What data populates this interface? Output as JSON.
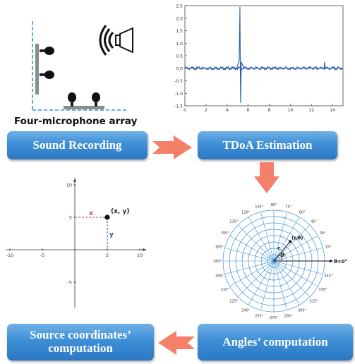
{
  "labels": {
    "array_caption": "Four-microphone array",
    "sound_recording": "Sound Recording",
    "tdoa_estimation": "TDoA Estimation",
    "angles_computation": "Angles’ computation",
    "source_coordinates": "Source coordinates’ computation",
    "plot_point": "(x, y)",
    "plot_x": "x",
    "plot_y": "y",
    "polar_point": "(r,θ)",
    "polar_r": "r",
    "polar_theta": "θ",
    "polar_zero": "θ=0°"
  },
  "colors": {
    "box_blue": "#3f8fd6",
    "arrow_orange": "#f4806a",
    "waveform": "#2a5caa"
  },
  "chart_data": [
    {
      "type": "line",
      "title": "",
      "xlabel": "",
      "ylabel": "",
      "xlim": [
        0,
        15
      ],
      "ylim": [
        -1.5,
        2.5
      ],
      "xticks": [
        0,
        2,
        4,
        6,
        8,
        10,
        12,
        14
      ],
      "yticks": [
        2.5,
        2.0,
        1.5,
        1.0,
        0.5,
        0.0,
        -0.5,
        -1.0,
        -1.5
      ],
      "ytick_labels": [
        "2.5",
        "2.0",
        "1.5",
        "1.0",
        "0.5",
        "0.0",
        "-0.5",
        "-1.0",
        "-1.5"
      ],
      "series": [
        {
          "x": [
            0,
            4.9,
            5.15,
            5.22,
            5.28,
            5.35,
            5.6,
            13.2,
            13.25,
            13.3,
            15
          ],
          "y": [
            0.0,
            0.0,
            0.3,
            2.45,
            -1.38,
            0.25,
            0.0,
            0.0,
            0.25,
            0.0,
            0.0
          ]
        }
      ],
      "grid": false
    },
    {
      "type": "scatter",
      "xlim": [
        -10,
        10
      ],
      "ylim": [
        -10,
        10
      ],
      "xticks": [
        -10,
        -5,
        5,
        10
      ],
      "yticks": [
        10,
        5,
        -5,
        -10
      ],
      "series": [
        {
          "x": [
            5
          ],
          "y": [
            5
          ]
        }
      ],
      "grid": false
    },
    {
      "type": "polar",
      "angle_labels": [
        "0°",
        "15°",
        "30°",
        "45°",
        "60°",
        "75°",
        "90°",
        "105°",
        "120°",
        "135°",
        "150°",
        "165°",
        "180°",
        "195°",
        "210°",
        "225°",
        "240°",
        "255°",
        "270°",
        "285°",
        "300°",
        "315°",
        "330°",
        "345°"
      ],
      "rings": 8,
      "point": {
        "r": 0.5,
        "theta_deg": 50
      },
      "grid": true
    }
  ]
}
